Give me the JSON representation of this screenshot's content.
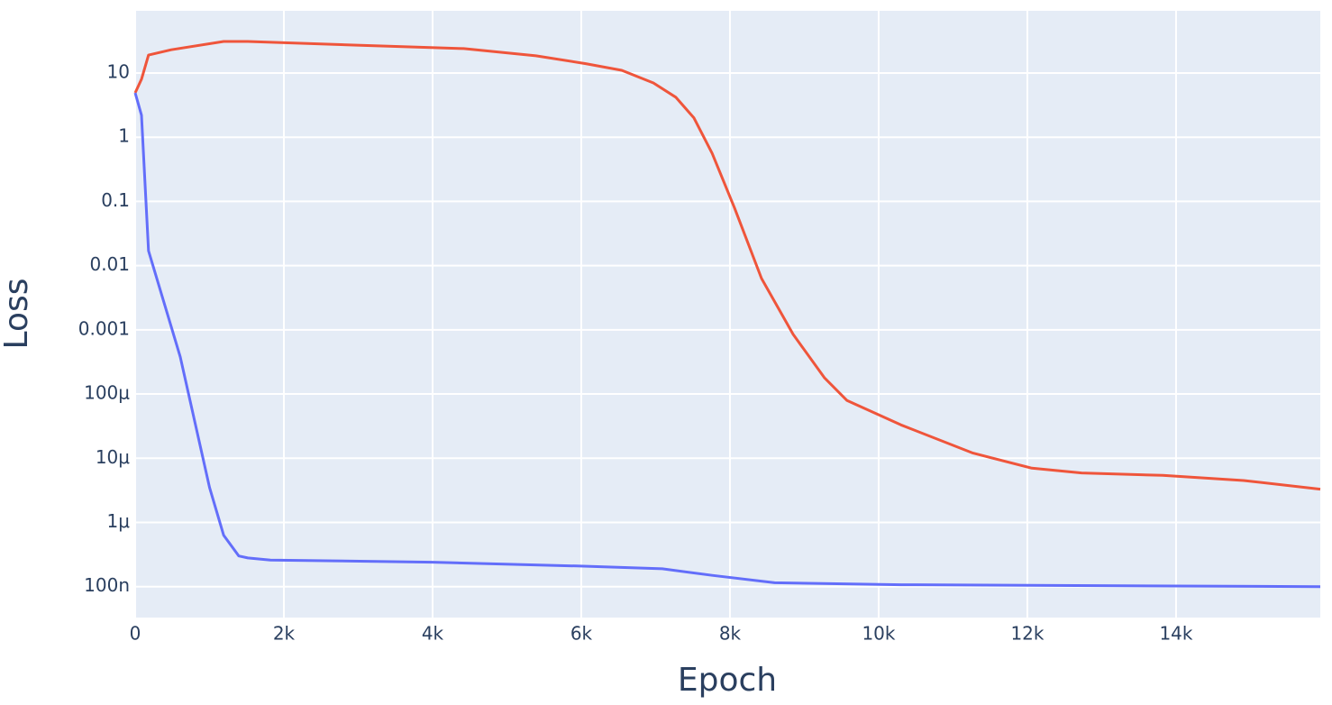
{
  "chart_data": {
    "type": "line",
    "x_label": "Epoch",
    "y_label": "Loss",
    "log_y": true,
    "grid": true,
    "xlim": [
      0,
      15940
    ],
    "ylim": [
      3.3e-08,
      93
    ],
    "xticks": [
      0,
      {
        "value": 2000,
        "label": "2k"
      },
      {
        "value": 4000,
        "label": "4k"
      },
      {
        "value": 6000,
        "label": "6k"
      },
      {
        "value": 8000,
        "label": "8k"
      },
      {
        "value": 10000,
        "label": "10k"
      },
      {
        "value": 12000,
        "label": "12k"
      },
      {
        "value": 14000,
        "label": "14k"
      }
    ],
    "yticks": [
      10,
      1,
      0.1,
      0.01,
      0.001,
      {
        "value": 0.0001,
        "label": "100μ"
      },
      {
        "value": 1e-05,
        "label": "10μ"
      },
      {
        "value": 1e-06,
        "label": "1μ"
      },
      {
        "value": 1e-07,
        "label": "100n"
      }
    ],
    "series": [
      {
        "color": "#EF553B",
        "x": [
          0,
          85,
          180,
          485,
          1190,
          1515,
          3030,
          4420,
          5390,
          6060,
          6545,
          6970,
          7270,
          7515,
          7760,
          8060,
          8425,
          8850,
          9270,
          9575,
          10300,
          11270,
          12060,
          12730,
          13820,
          14910,
          15940
        ],
        "values": [
          4.9,
          8,
          19,
          23,
          31,
          31,
          27,
          24,
          18.5,
          14,
          11,
          7,
          4.2,
          2,
          0.56,
          0.08,
          0.0063,
          0.00085,
          0.00018,
          7.9e-05,
          3.3e-05,
          1.2e-05,
          7e-06,
          5.9e-06,
          5.4e-06,
          4.5e-06,
          3.3e-06
        ]
      },
      {
        "color": "#636EFA",
        "x": [
          0,
          85,
          180,
          606,
          1000,
          1190,
          1394,
          1515,
          1820,
          4000,
          5940,
          7090,
          7760,
          8600,
          10300,
          15940
        ],
        "values": [
          4.9,
          2.2,
          0.017,
          0.00038,
          3.5e-06,
          6.3e-07,
          3e-07,
          2.8e-07,
          2.6e-07,
          2.4e-07,
          2.1e-07,
          1.9e-07,
          1.5e-07,
          1.15e-07,
          1.07e-07,
          1e-07
        ]
      }
    ]
  }
}
